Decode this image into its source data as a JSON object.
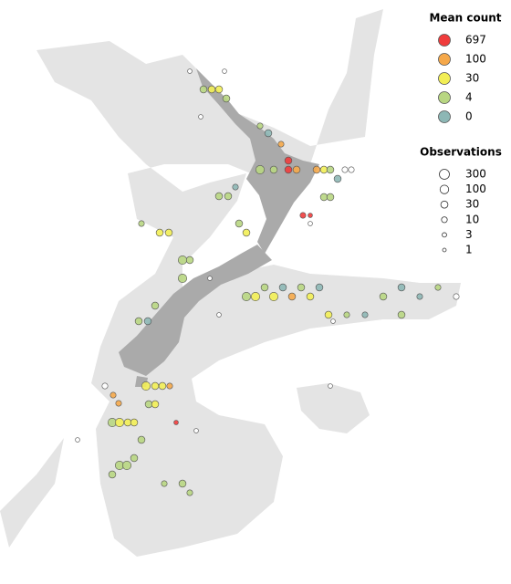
{
  "legend": {
    "mean_count": {
      "title": "Mean count",
      "items": [
        {
          "value": 697,
          "color": "#f03c3c"
        },
        {
          "value": 100,
          "color": "#f5a84a"
        },
        {
          "value": 30,
          "color": "#f2ee55"
        },
        {
          "value": 4,
          "color": "#b8d682"
        },
        {
          "value": 0,
          "color": "#8db7b5"
        }
      ]
    },
    "observations": {
      "title": "Observations",
      "items": [
        300,
        100,
        30,
        10,
        3,
        1
      ]
    }
  },
  "points": [
    {
      "lon": 173.64,
      "lat": -40.54,
      "mean_count": 697,
      "observations": 30
    },
    {
      "lon": 173.64,
      "lat": -40.94,
      "mean_count": 697,
      "observations": 30
    },
    {
      "lon": 174.0,
      "lat": -40.94,
      "mean_count": 100,
      "observations": 30
    },
    {
      "lon": 174.28,
      "lat": -42.94,
      "mean_count": 697,
      "observations": 10
    },
    {
      "lon": 174.6,
      "lat": -42.94,
      "mean_count": 697,
      "observations": 3
    },
    {
      "lon": 173.32,
      "lat": -39.82,
      "mean_count": 100,
      "observations": 10
    },
    {
      "lon": 172.4,
      "lat": -40.94,
      "mean_count": 4,
      "observations": 100
    },
    {
      "lon": 173.0,
      "lat": -40.94,
      "mean_count": 4,
      "observations": 30
    },
    {
      "lon": 174.88,
      "lat": -40.94,
      "mean_count": 100,
      "observations": 30
    },
    {
      "lon": 175.2,
      "lat": -40.94,
      "mean_count": 30,
      "observations": 30
    },
    {
      "lon": 175.48,
      "lat": -40.94,
      "mean_count": 4,
      "observations": 30
    },
    {
      "lon": 175.8,
      "lat": -41.34,
      "mean_count": 0,
      "observations": 30
    },
    {
      "lon": 175.2,
      "lat": -42.14,
      "mean_count": 4,
      "observations": 30
    },
    {
      "lon": 175.48,
      "lat": -42.14,
      "mean_count": 4,
      "observations": 30
    },
    {
      "lon": 172.76,
      "lat": -39.34,
      "mean_count": 0,
      "observations": 30
    },
    {
      "lon": 172.4,
      "lat": -39.02,
      "mean_count": 4,
      "observations": 10
    },
    {
      "lon": 170.28,
      "lat": -37.42,
      "mean_count": 30,
      "observations": 30
    },
    {
      "lon": 170.6,
      "lat": -37.42,
      "mean_count": 30,
      "observations": 30
    },
    {
      "lon": 170.92,
      "lat": -37.82,
      "mean_count": 4,
      "observations": 30
    },
    {
      "lon": 169.92,
      "lat": -37.42,
      "mean_count": 4,
      "observations": 30
    },
    {
      "lon": 171.8,
      "lat": -46.5,
      "mean_count": 4,
      "observations": 100
    },
    {
      "lon": 172.2,
      "lat": -46.5,
      "mean_count": 30,
      "observations": 100
    },
    {
      "lon": 172.6,
      "lat": -46.1,
      "mean_count": 4,
      "observations": 30
    },
    {
      "lon": 173.0,
      "lat": -46.5,
      "mean_count": 30,
      "observations": 100
    },
    {
      "lon": 173.4,
      "lat": -46.1,
      "mean_count": 0,
      "observations": 30
    },
    {
      "lon": 173.8,
      "lat": -46.5,
      "mean_count": 100,
      "observations": 30
    },
    {
      "lon": 174.2,
      "lat": -46.1,
      "mean_count": 4,
      "observations": 30
    },
    {
      "lon": 174.6,
      "lat": -46.5,
      "mean_count": 30,
      "observations": 30
    },
    {
      "lon": 175.0,
      "lat": -46.1,
      "mean_count": 0,
      "observations": 30
    },
    {
      "lon": 175.4,
      "lat": -47.3,
      "mean_count": 30,
      "observations": 30
    },
    {
      "lon": 176.2,
      "lat": -47.3,
      "mean_count": 4,
      "observations": 10
    },
    {
      "lon": 177.0,
      "lat": -47.3,
      "mean_count": 0,
      "observations": 10
    },
    {
      "lon": 177.8,
      "lat": -46.5,
      "mean_count": 4,
      "observations": 30
    },
    {
      "lon": 178.6,
      "lat": -46.1,
      "mean_count": 0,
      "observations": 30
    },
    {
      "lon": 178.6,
      "lat": -47.3,
      "mean_count": 4,
      "observations": 30
    },
    {
      "lon": 179.4,
      "lat": -46.5,
      "mean_count": 0,
      "observations": 10
    },
    {
      "lon": 180.2,
      "lat": -46.1,
      "mean_count": 4,
      "observations": 10
    },
    {
      "lon": 181.0,
      "lat": -46.5,
      "mean_count": null,
      "observations": 10
    },
    {
      "lon": 165.92,
      "lat": -52.02,
      "mean_count": 4,
      "observations": 100
    },
    {
      "lon": 166.24,
      "lat": -52.02,
      "mean_count": 30,
      "observations": 100
    },
    {
      "lon": 166.6,
      "lat": -52.02,
      "mean_count": 30,
      "observations": 30
    },
    {
      "lon": 166.88,
      "lat": -52.02,
      "mean_count": 30,
      "observations": 30
    },
    {
      "lon": 166.24,
      "lat": -53.9,
      "mean_count": 4,
      "observations": 100
    },
    {
      "lon": 166.56,
      "lat": -53.9,
      "mean_count": 4,
      "observations": 100
    },
    {
      "lon": 166.88,
      "lat": -53.58,
      "mean_count": 4,
      "observations": 30
    },
    {
      "lon": 165.92,
      "lat": -54.3,
      "mean_count": 4,
      "observations": 30
    },
    {
      "lon": 167.2,
      "lat": -52.78,
      "mean_count": 4,
      "observations": 30
    },
    {
      "lon": 167.4,
      "lat": -50.42,
      "mean_count": 30,
      "observations": 100
    },
    {
      "lon": 167.8,
      "lat": -50.42,
      "mean_count": 30,
      "observations": 30
    },
    {
      "lon": 168.12,
      "lat": -50.42,
      "mean_count": 30,
      "observations": 30
    },
    {
      "lon": 165.96,
      "lat": -50.82,
      "mean_count": 100,
      "observations": 10
    },
    {
      "lon": 166.2,
      "lat": -51.18,
      "mean_count": 100,
      "observations": 10
    },
    {
      "lon": 168.72,
      "lat": -52.02,
      "mean_count": 697,
      "observations": 3
    },
    {
      "lon": 168.44,
      "lat": -50.42,
      "mean_count": 100,
      "observations": 10
    },
    {
      "lon": 167.52,
      "lat": -51.22,
      "mean_count": 4,
      "observations": 30
    },
    {
      "lon": 167.8,
      "lat": -51.22,
      "mean_count": 30,
      "observations": 30
    },
    {
      "lon": 169.0,
      "lat": -54.7,
      "mean_count": 4,
      "observations": 30
    },
    {
      "lon": 168.2,
      "lat": -54.7,
      "mean_count": 4,
      "observations": 10
    },
    {
      "lon": 169.32,
      "lat": -55.1,
      "mean_count": 4,
      "observations": 10
    },
    {
      "lon": 167.48,
      "lat": -47.58,
      "mean_count": 0,
      "observations": 30
    },
    {
      "lon": 167.08,
      "lat": -47.58,
      "mean_count": 4,
      "observations": 30
    },
    {
      "lon": 167.8,
      "lat": -46.9,
      "mean_count": 4,
      "observations": 30
    },
    {
      "lon": 169.0,
      "lat": -45.7,
      "mean_count": 4,
      "observations": 100
    },
    {
      "lon": 169.32,
      "lat": -44.9,
      "mean_count": 4,
      "observations": 30
    },
    {
      "lon": 169.0,
      "lat": -44.9,
      "mean_count": 4,
      "observations": 100
    },
    {
      "lon": 168.0,
      "lat": -43.7,
      "mean_count": 30,
      "observations": 30
    },
    {
      "lon": 168.4,
      "lat": -43.7,
      "mean_count": 30,
      "observations": 30
    },
    {
      "lon": 167.2,
      "lat": -43.3,
      "mean_count": 4,
      "observations": 10
    },
    {
      "lon": 170.6,
      "lat": -42.1,
      "mean_count": 4,
      "observations": 30
    },
    {
      "lon": 171.0,
      "lat": -42.1,
      "mean_count": 4,
      "observations": 30
    },
    {
      "lon": 171.48,
      "lat": -43.3,
      "mean_count": 4,
      "observations": 30
    },
    {
      "lon": 171.8,
      "lat": -43.7,
      "mean_count": 30,
      "observations": 30
    },
    {
      "lon": 171.32,
      "lat": -41.7,
      "mean_count": 0,
      "observations": 10
    },
    {
      "lon": 169.32,
      "lat": -36.62,
      "mean_count": null,
      "observations": 3
    },
    {
      "lon": 170.84,
      "lat": -36.62,
      "mean_count": null,
      "observations": 3
    },
    {
      "lon": 169.8,
      "lat": -38.62,
      "mean_count": null,
      "observations": 3
    },
    {
      "lon": 174.6,
      "lat": -43.3,
      "mean_count": null,
      "observations": 3
    },
    {
      "lon": 176.12,
      "lat": -40.94,
      "mean_count": null,
      "observations": 10
    },
    {
      "lon": 176.4,
      "lat": -40.94,
      "mean_count": null,
      "observations": 10
    },
    {
      "lon": 165.6,
      "lat": -50.42,
      "mean_count": null,
      "observations": 10
    },
    {
      "lon": 175.48,
      "lat": -50.42,
      "mean_count": null,
      "observations": 3
    },
    {
      "lon": 169.6,
      "lat": -52.38,
      "mean_count": null,
      "observations": 3
    },
    {
      "lon": 164.4,
      "lat": -52.78,
      "mean_count": null,
      "observations": 3
    },
    {
      "lon": 170.2,
      "lat": -45.7,
      "mean_count": null,
      "observations": 3
    },
    {
      "lon": 170.6,
      "lat": -47.3,
      "mean_count": null,
      "observations": 3
    },
    {
      "lon": 175.6,
      "lat": -47.58,
      "mean_count": null,
      "observations": 3
    }
  ]
}
